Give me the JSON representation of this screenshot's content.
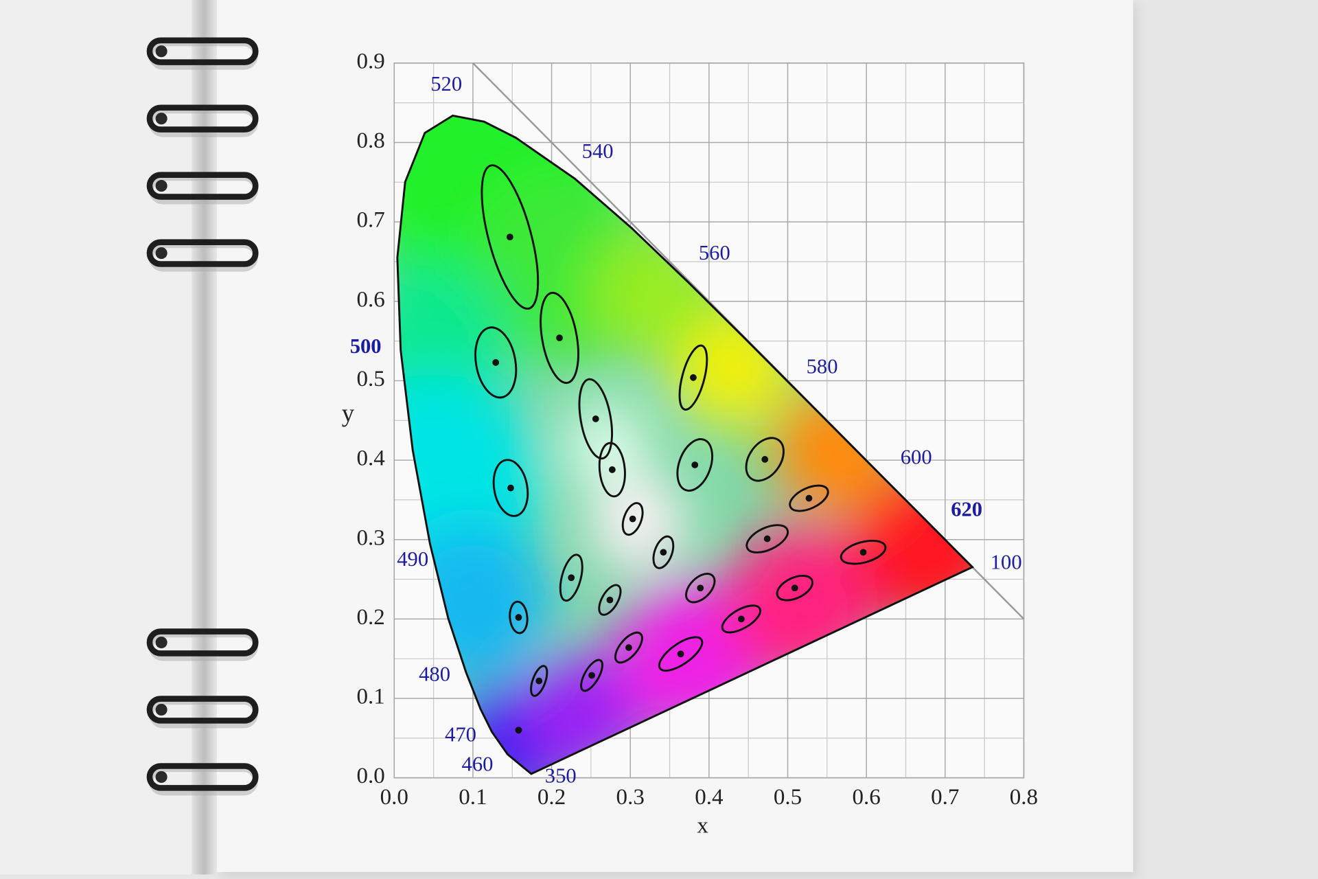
{
  "chart_data": {
    "type": "scatter",
    "x_label": "x",
    "y_label": "y",
    "xlim": [
      0,
      0.8
    ],
    "xticks": [
      {
        "value": 0,
        "label": "0.0"
      },
      0.1,
      0.2,
      0.3,
      0.4,
      0.5,
      0.6,
      0.7,
      0.8
    ],
    "ylim": [
      0,
      0.9
    ],
    "yticks": [
      {
        "value": 0,
        "label": "0.0"
      },
      0.1,
      0.2,
      0.3,
      0.4,
      0.5,
      0.6,
      0.7,
      0.8,
      0.9
    ],
    "grid": true,
    "color": "#111111",
    "x": [
      0.147,
      0.21,
      0.129,
      0.256,
      0.38,
      0.277,
      0.382,
      0.471,
      0.148,
      0.303,
      0.527,
      0.342,
      0.474,
      0.225,
      0.596,
      0.274,
      0.389,
      0.509,
      0.158,
      0.441,
      0.298,
      0.364,
      0.184,
      0.251,
      0.158
    ],
    "values": [
      0.681,
      0.554,
      0.523,
      0.452,
      0.504,
      0.388,
      0.394,
      0.401,
      0.365,
      0.326,
      0.352,
      0.284,
      0.301,
      0.252,
      0.284,
      0.224,
      0.239,
      0.239,
      0.202,
      0.2,
      0.164,
      0.156,
      0.122,
      0.129,
      0.06
    ],
    "semi_major": [
      0.094,
      0.058,
      0.045,
      0.051,
      0.042,
      0.034,
      0.034,
      0.03,
      0.036,
      0.021,
      0.026,
      0.021,
      0.028,
      0.03,
      0.029,
      0.021,
      0.022,
      0.024,
      0.02,
      0.027,
      0.023,
      0.032,
      0.02,
      0.022,
      0.003
    ],
    "semi_minor": [
      0.027,
      0.022,
      0.025,
      0.019,
      0.014,
      0.016,
      0.02,
      0.02,
      0.021,
      0.011,
      0.013,
      0.011,
      0.014,
      0.012,
      0.013,
      0.01,
      0.013,
      0.013,
      0.011,
      0.012,
      0.011,
      0.013,
      0.008,
      0.009,
      0.003
    ],
    "angle": [
      105,
      100,
      100,
      100,
      75,
      95,
      70,
      55,
      100,
      70,
      25,
      70,
      25,
      75,
      15,
      60,
      45,
      25,
      95,
      30,
      50,
      35,
      70,
      60,
      0
    ],
    "wavelength_labels": [
      "520",
      "540",
      "560",
      "580",
      "600",
      "620",
      "100",
      "500",
      "490",
      "480",
      "470",
      "460",
      "350"
    ]
  }
}
